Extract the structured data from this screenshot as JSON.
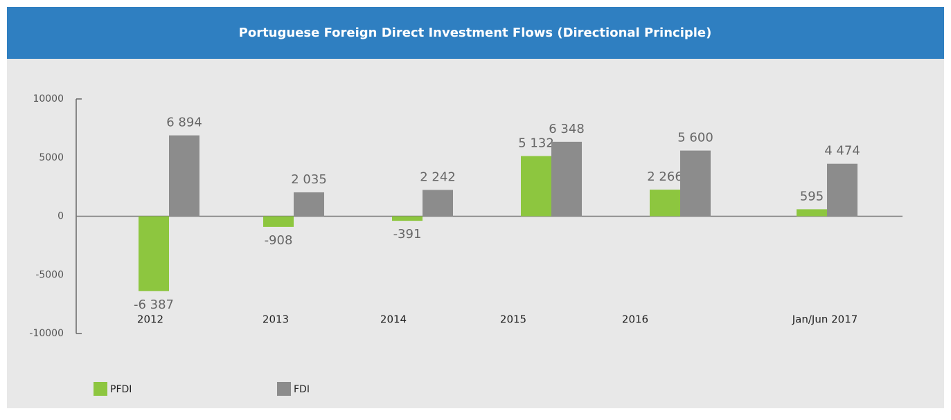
{
  "chart_data": {
    "type": "bar",
    "title": "Portuguese Foreign Direct Investment Flows (Directional Principle)",
    "categories": [
      "2012",
      "2013",
      "2014",
      "2015",
      "2016",
      "Jan/Jun 2017"
    ],
    "series": [
      {
        "name": "PFDI",
        "color": "#8dc63f",
        "values": [
          -6387,
          -908,
          -391,
          5132,
          2266,
          595
        ],
        "value_labels": [
          "-6 387",
          "-908",
          "-391",
          "5 132",
          "2 266",
          "595"
        ]
      },
      {
        "name": "FDI",
        "color": "#8c8c8c",
        "values": [
          6894,
          2035,
          2242,
          6348,
          5600,
          4474
        ],
        "value_labels": [
          "6 894",
          "2 035",
          "2 242",
          "6 348",
          "5 600",
          "4 474"
        ]
      }
    ],
    "ylim": [
      -10000,
      10000
    ],
    "yticks": [
      -10000,
      -5000,
      0,
      5000,
      10000
    ],
    "grid": false
  }
}
